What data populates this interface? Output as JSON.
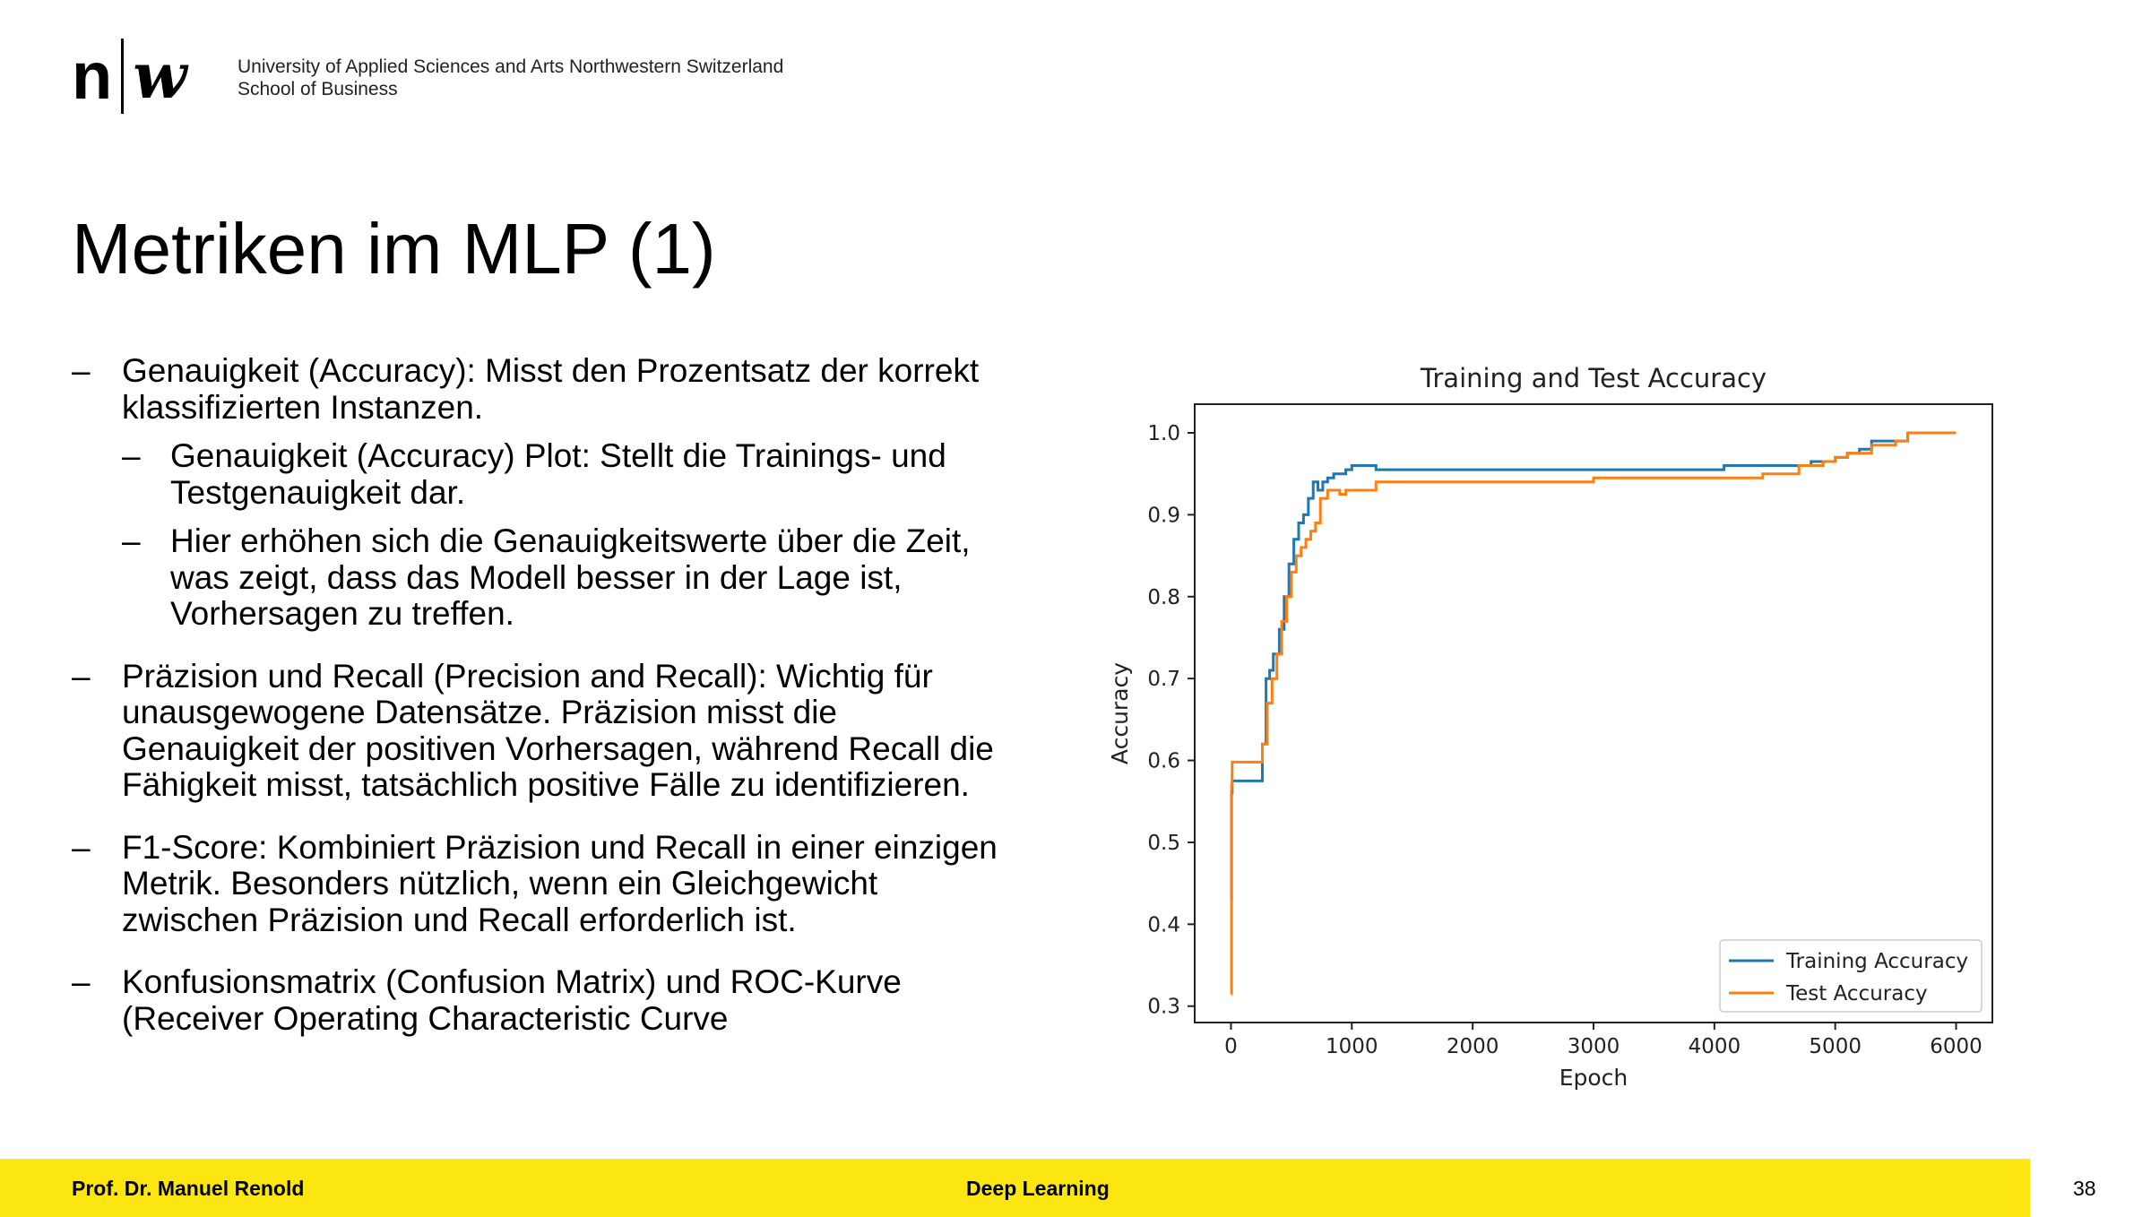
{
  "header": {
    "logo_n": "n",
    "logo_w": "w",
    "institution_line1": "University of Applied Sciences and Arts Northwestern Switzerland",
    "institution_line2": "School of Business"
  },
  "slide": {
    "title": "Metriken im MLP (1)",
    "bullets": [
      {
        "text": "Genauigkeit (Accuracy): Misst den Prozentsatz der korrekt klassifizierten Instanzen.",
        "subs": [
          "Genauigkeit (Accuracy) Plot: Stellt die Trainings- und Testgenauigkeit dar.",
          "Hier erhöhen sich die Genauigkeitswerte über die Zeit, was zeigt, dass das Modell besser in der Lage ist, Vorhersagen zu treffen."
        ]
      },
      {
        "text": "Präzision und Recall (Precision and Recall): Wichtig für unausgewogene Datensätze. Präzision misst die Genauigkeit der positiven Vorhersagen, während Recall die Fähigkeit misst, tatsächlich positive Fälle zu identifizieren."
      },
      {
        "text": "F1-Score: Kombiniert Präzision und Recall in einer einzigen Metrik. Besonders nützlich, wenn ein Gleichgewicht zwischen Präzision und Recall erforderlich ist."
      },
      {
        "text": "Konfusionsmatrix (Confusion Matrix) und ROC-Kurve (Receiver Operating Characteristic Curve"
      }
    ],
    "dash": "–"
  },
  "chart_data": {
    "type": "line",
    "title": "Training and Test Accuracy",
    "xlabel": "Epoch",
    "ylabel": "Accuracy",
    "xlim": [
      -300,
      6300
    ],
    "ylim": [
      0.28,
      1.035
    ],
    "xticks": [
      0,
      1000,
      2000,
      3000,
      4000,
      5000,
      6000
    ],
    "yticks": [
      0.3,
      0.4,
      0.5,
      0.6,
      0.7,
      0.8,
      0.9,
      1.0
    ],
    "legend_position": "lower-right",
    "grid": false,
    "series": [
      {
        "name": "Training Accuracy",
        "color": "#1f77b4",
        "x": [
          0,
          5,
          10,
          230,
          260,
          290,
          320,
          350,
          400,
          440,
          480,
          520,
          560,
          600,
          640,
          680,
          720,
          760,
          800,
          850,
          900,
          950,
          1000,
          1200,
          2000,
          3000,
          4000,
          4080,
          4500,
          4800,
          4980,
          5000,
          5100,
          5200,
          5300,
          5500,
          5600,
          5800,
          6000
        ],
        "y": [
          0.43,
          0.56,
          0.575,
          0.575,
          0.62,
          0.7,
          0.71,
          0.73,
          0.76,
          0.8,
          0.84,
          0.87,
          0.89,
          0.9,
          0.92,
          0.94,
          0.93,
          0.94,
          0.945,
          0.95,
          0.95,
          0.955,
          0.96,
          0.955,
          0.955,
          0.955,
          0.955,
          0.96,
          0.96,
          0.965,
          0.965,
          0.97,
          0.975,
          0.98,
          0.99,
          0.99,
          1.0,
          1.0,
          1.0
        ]
      },
      {
        "name": "Test Accuracy",
        "color": "#ff7f0e",
        "x": [
          0,
          5,
          10,
          230,
          260,
          300,
          340,
          380,
          420,
          460,
          500,
          540,
          580,
          620,
          660,
          700,
          740,
          800,
          850,
          900,
          950,
          1000,
          1200,
          2000,
          2900,
          3000,
          4000,
          4400,
          4700,
          4900,
          5000,
          5100,
          5300,
          5500,
          5600,
          5800,
          6000
        ],
        "y": [
          0.315,
          0.57,
          0.598,
          0.598,
          0.62,
          0.67,
          0.7,
          0.73,
          0.77,
          0.8,
          0.83,
          0.85,
          0.86,
          0.87,
          0.88,
          0.89,
          0.92,
          0.93,
          0.93,
          0.925,
          0.93,
          0.93,
          0.94,
          0.94,
          0.94,
          0.945,
          0.945,
          0.95,
          0.96,
          0.965,
          0.97,
          0.975,
          0.985,
          0.99,
          1.0,
          1.0,
          1.0
        ]
      }
    ]
  },
  "footer": {
    "author": "Prof. Dr. Manuel Renold",
    "course": "Deep Learning",
    "page_number": "38",
    "background_color": "#fbe612"
  }
}
